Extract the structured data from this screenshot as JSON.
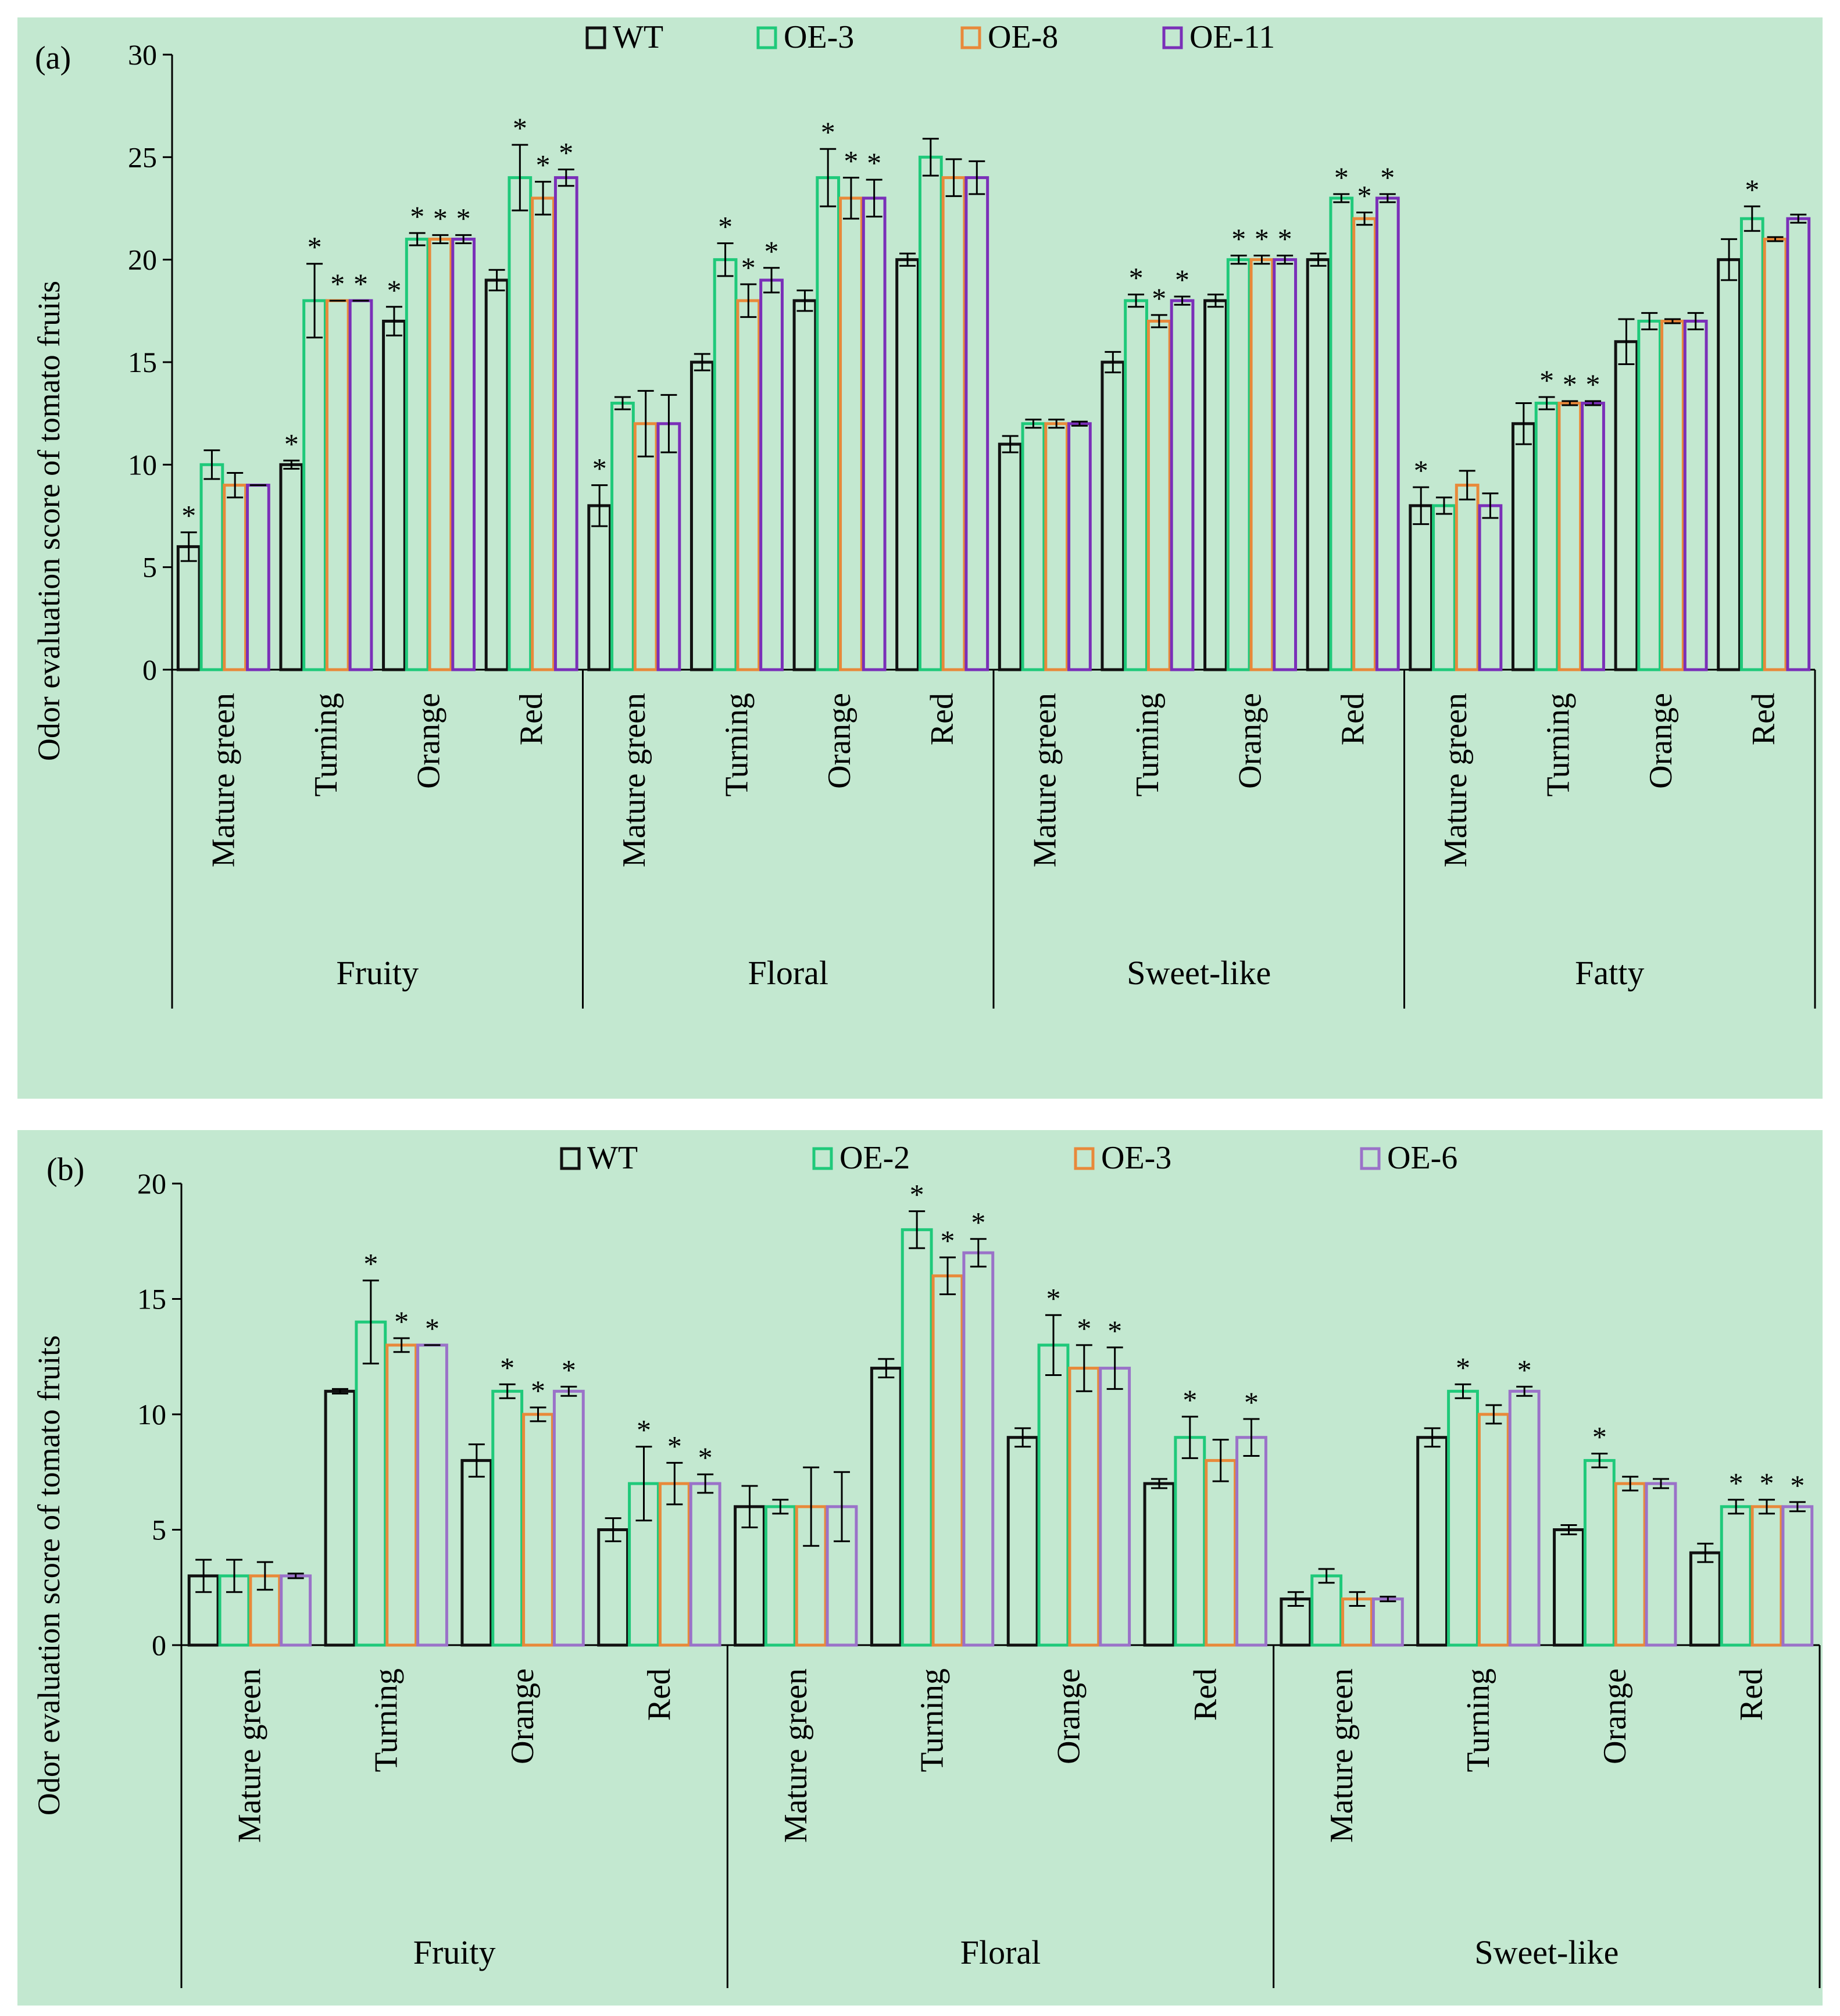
{
  "chart_data": [
    {
      "type": "bar",
      "panel_label": "(a)",
      "ylabel": "Odor evaluation score of tomato fruits",
      "ylim": [
        0,
        30
      ],
      "yticks": [
        0,
        5,
        10,
        15,
        20,
        25,
        30
      ],
      "groups": [
        "Fruity",
        "Floral",
        "Sweet-like",
        "Fatty"
      ],
      "categories": [
        "Mature green",
        "Turning",
        "Orange",
        "Red"
      ],
      "series": [
        {
          "name": "WT",
          "color": "#111111",
          "values": [
            [
              6,
              10,
              17,
              19
            ],
            [
              8,
              15,
              18,
              20
            ],
            [
              11,
              15,
              18,
              20
            ],
            [
              8,
              12,
              16,
              20
            ]
          ],
          "errors": [
            [
              0.7,
              0.2,
              0.7,
              0.5
            ],
            [
              1,
              0.4,
              0.5,
              0.3
            ],
            [
              0.4,
              0.5,
              0.3,
              0.3
            ],
            [
              0.9,
              1,
              1.1,
              1
            ]
          ]
        },
        {
          "name": "OE-3",
          "color": "#1fc97a",
          "values": [
            [
              10,
              18,
              21,
              24
            ],
            [
              13,
              20,
              24,
              25
            ],
            [
              12,
              18,
              20,
              23
            ],
            [
              8,
              13,
              17,
              22
            ]
          ],
          "errors": [
            [
              0.7,
              1.8,
              0.3,
              1.6
            ],
            [
              0.3,
              0.8,
              1.4,
              0.9
            ],
            [
              0.2,
              0.3,
              0.2,
              0.2
            ],
            [
              0.4,
              0.3,
              0.4,
              0.6
            ]
          ]
        },
        {
          "name": "OE-8",
          "color": "#e8893a",
          "values": [
            [
              9,
              18,
              21,
              23
            ],
            [
              12,
              18,
              23,
              24
            ],
            [
              12,
              17,
              20,
              22
            ],
            [
              9,
              13,
              17,
              21
            ]
          ],
          "errors": [
            [
              0.6,
              0,
              0.2,
              0.8
            ],
            [
              1.6,
              0.8,
              1,
              0.9
            ],
            [
              0.2,
              0.3,
              0.2,
              0.3
            ],
            [
              0.7,
              0.1,
              0.1,
              0.1
            ]
          ]
        },
        {
          "name": "OE-11",
          "color": "#7a2fb8",
          "values": [
            [
              9,
              18,
              21,
              24
            ],
            [
              12,
              19,
              23,
              24
            ],
            [
              12,
              18,
              20,
              23
            ],
            [
              8,
              13,
              17,
              22
            ]
          ],
          "errors": [
            [
              0,
              0,
              0.2,
              0.4
            ],
            [
              1.4,
              0.6,
              0.9,
              0.8
            ],
            [
              0.1,
              0.2,
              0.2,
              0.2
            ],
            [
              0.6,
              0.1,
              0.4,
              0.2
            ]
          ]
        }
      ],
      "significance": [
        [
          [
            "*",
            "",
            "",
            ""
          ],
          [
            "*",
            "*",
            "*",
            "*"
          ],
          [
            "*",
            "*",
            "*",
            "*"
          ],
          [
            "",
            "*",
            "*",
            "*"
          ]
        ],
        [
          [
            "*",
            "",
            "",
            ""
          ],
          [
            "",
            "*",
            "*",
            "*"
          ],
          [
            "",
            "*",
            "*",
            "*"
          ],
          [
            "",
            "",
            "",
            ""
          ]
        ],
        [
          [
            "",
            "",
            "",
            ""
          ],
          [
            "",
            "*",
            "*",
            "*"
          ],
          [
            "",
            "*",
            "*",
            "*"
          ],
          [
            "",
            "*",
            "*",
            "*"
          ]
        ],
        [
          [
            "*",
            "",
            "",
            ""
          ],
          [
            "",
            "*",
            "*",
            "*"
          ],
          [
            "",
            "",
            "",
            ""
          ],
          [
            "",
            "*",
            "",
            ""
          ]
        ]
      ]
    },
    {
      "type": "bar",
      "panel_label": "(b)",
      "ylabel": "Odor evaluation score of tomato fruits",
      "ylim": [
        0,
        20
      ],
      "yticks": [
        0,
        5,
        10,
        15,
        20
      ],
      "groups": [
        "Fruity",
        "Floral",
        "Sweet-like"
      ],
      "categories": [
        "Mature green",
        "Turning",
        "Orange",
        "Red"
      ],
      "series": [
        {
          "name": "WT",
          "color": "#111111",
          "values": [
            [
              3,
              11,
              8,
              5
            ],
            [
              6,
              12,
              9,
              7
            ],
            [
              2,
              9,
              5,
              4
            ]
          ],
          "errors": [
            [
              0.7,
              0.1,
              0.7,
              0.5
            ],
            [
              0.9,
              0.4,
              0.4,
              0.2
            ],
            [
              0.3,
              0.4,
              0.2,
              0.4
            ]
          ]
        },
        {
          "name": "OE-2",
          "color": "#1fc97a",
          "values": [
            [
              3,
              14,
              11,
              7
            ],
            [
              6,
              18,
              13,
              9
            ],
            [
              3,
              11,
              8,
              6
            ]
          ],
          "errors": [
            [
              0.7,
              1.8,
              0.3,
              1.6
            ],
            [
              0.3,
              0.8,
              1.3,
              0.9
            ],
            [
              0.3,
              0.3,
              0.3,
              0.3
            ]
          ]
        },
        {
          "name": "OE-3",
          "color": "#e8893a",
          "values": [
            [
              3,
              13,
              10,
              7
            ],
            [
              6,
              16,
              12,
              8
            ],
            [
              2,
              10,
              7,
              6
            ]
          ],
          "errors": [
            [
              0.6,
              0.3,
              0.3,
              0.9
            ],
            [
              1.7,
              0.8,
              1,
              0.9
            ],
            [
              0.3,
              0.4,
              0.3,
              0.3
            ]
          ]
        },
        {
          "name": "OE-6",
          "color": "#9a72c8",
          "values": [
            [
              3,
              13,
              11,
              7
            ],
            [
              6,
              17,
              12,
              9
            ],
            [
              2,
              11,
              7,
              6
            ]
          ],
          "errors": [
            [
              0.1,
              0,
              0.2,
              0.4
            ],
            [
              1.5,
              0.6,
              0.9,
              0.8
            ],
            [
              0.1,
              0.2,
              0.2,
              0.2
            ]
          ]
        }
      ],
      "significance": [
        [
          [
            "",
            "",
            "",
            ""
          ],
          [
            "",
            "*",
            "*",
            "*"
          ],
          [
            "",
            "*",
            "*",
            "*"
          ],
          [
            "",
            "*",
            "*",
            "*"
          ]
        ],
        [
          [
            "",
            "",
            "",
            ""
          ],
          [
            "",
            "*",
            "*",
            "*"
          ],
          [
            "",
            "*",
            "*",
            "*"
          ],
          [
            "",
            "*",
            "",
            "*"
          ]
        ],
        [
          [
            "",
            "",
            "",
            ""
          ],
          [
            "",
            "*",
            "",
            "*"
          ],
          [
            "",
            "*",
            "",
            ""
          ],
          [
            "",
            "*",
            "*",
            "*"
          ]
        ]
      ]
    }
  ]
}
